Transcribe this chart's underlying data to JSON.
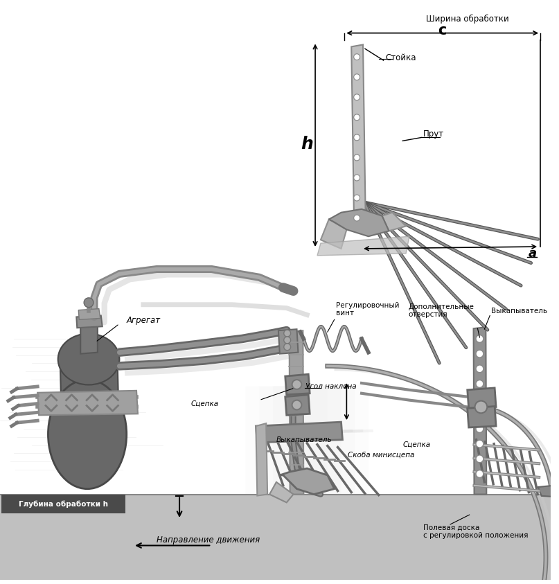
{
  "bg_color": "#ffffff",
  "ground_color": "#c0c0c0",
  "machine_body_color": "#686868",
  "machine_dark": "#484848",
  "shadow_color": "#b8b8b8",
  "gray_medium": "#909090",
  "gray_light": "#b0b0b0",
  "gray_dark": "#585858",
  "rod_color": "#666666",
  "frame_color": "#787878",
  "blade_color": "#a8a8a8",
  "label_bg": "#4a4a4a",
  "label_text": "#ffffff",
  "arrow_color": "#000000",
  "text_color": "#000000",
  "label_fontsize": 8.5,
  "small_fontsize": 7.5,
  "annotations": {
    "shirina": "Ширина обработки",
    "c": "c",
    "stoika": "Стойка",
    "prut": "Прут",
    "h_label": "h",
    "a_label": "a",
    "agregat": "Агрегат",
    "reg_vint": "Регулировочный\nвинт",
    "dop_otv": "Дополнительные\nотверстия",
    "vyk1": "Выкапыватель",
    "ugol_nakl": "Угол наклона",
    "scepka1": "Сцепка",
    "vyk2": "Выкапыватель",
    "scepka2": "Сцепка",
    "skoba": "Скоба минисцепа",
    "glubinaObr": "Глубина обработки h",
    "napravl": "Направление движения",
    "polevaya": "Полевая доска\nс регулировкой положения"
  }
}
